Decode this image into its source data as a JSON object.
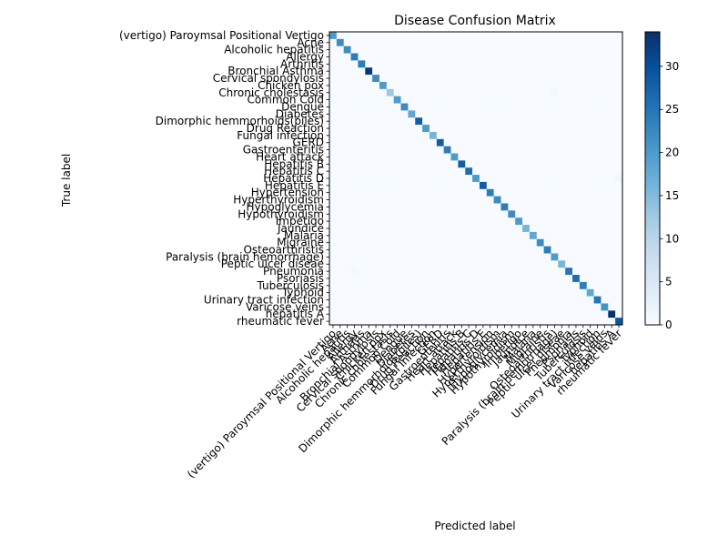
{
  "chart_data": {
    "type": "heatmap",
    "title": "Disease Confusion Matrix",
    "xlabel": "Predicted label",
    "ylabel": "True label",
    "labels": [
      "(vertigo) Paroymsal  Positional Vertigo",
      "Acne",
      "Alcoholic hepatitis",
      "Allergy",
      "Arthritis",
      "Bronchial Asthma",
      "Cervical spondylosis",
      "Chicken pox",
      "Chronic cholestasis",
      "Common Cold",
      "Dengue",
      "Diabetes ",
      "Dimorphic hemmorhoids(piles)",
      "Drug Reaction",
      "Fungal infection",
      "GERD",
      "Gastroenteritis",
      "Heart attack",
      "Hepatitis B",
      "Hepatitis C",
      "Hepatitis D",
      "Hepatitis E",
      "Hypertension ",
      "Hyperthyroidism",
      "Hypoglycemia",
      "Hypothyroidism",
      "Impetigo",
      "Jaundice",
      "Malaria",
      "Migraine",
      "Osteoarthristis",
      "Paralysis (brain hemorrhage)",
      "Peptic ulcer diseae",
      "Pneumonia",
      "Psoriasis",
      "Tuberculosis",
      "Typhoid",
      "Urinary tract infection",
      "Varicose veins",
      "hepatitis A",
      "rheumatic fever"
    ],
    "diagonal": [
      20,
      22,
      22,
      24,
      24,
      33,
      22,
      20,
      13,
      20,
      22,
      18,
      28,
      20,
      16,
      28,
      24,
      20,
      28,
      26,
      20,
      28,
      24,
      22,
      24,
      22,
      20,
      16,
      18,
      22,
      24,
      20,
      16,
      25,
      26,
      24,
      18,
      25,
      21,
      34,
      29
    ],
    "off_diagonal": [
      {
        "true": "Chronic cholestasis",
        "predicted": "Paralysis (brain hemorrhage)",
        "value": 1
      },
      {
        "true": "Hepatitis D",
        "predicted": "rheumatic fever",
        "value": 1
      },
      {
        "true": "Pneumonia",
        "predicted": "Allergy",
        "value": 1
      }
    ],
    "colorbar": {
      "min": 0,
      "max": 34,
      "ticks": [
        "0",
        "5",
        "10",
        "15",
        "20",
        "25",
        "30"
      ],
      "colormap": "Blues",
      "colors": [
        "#f7fbff",
        "#deebf7",
        "#c6dbef",
        "#9ecae1",
        "#6baed6",
        "#4292c6",
        "#2171b5",
        "#08519c",
        "#08306b"
      ]
    },
    "grid": false
  }
}
